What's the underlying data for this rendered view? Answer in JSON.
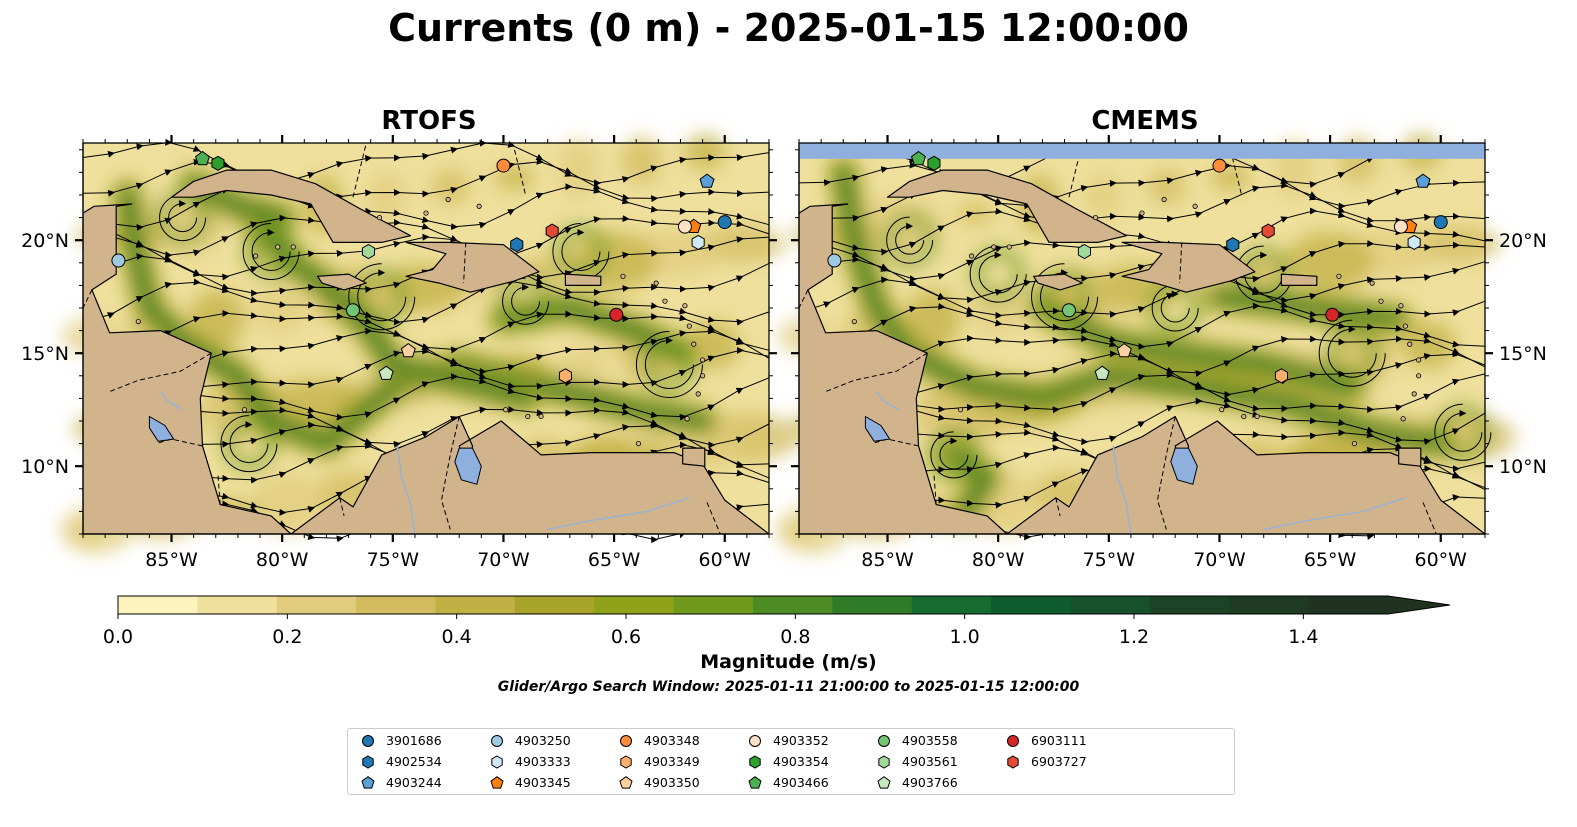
{
  "title": "Currents (0 m) - 2025-01-15 12:00:00",
  "panels": [
    {
      "id": "rtofs",
      "title": "RTOFS"
    },
    {
      "id": "cmems",
      "title": "CMEMS"
    }
  ],
  "map": {
    "lon_range": [
      -89,
      -58
    ],
    "lat_range": [
      7,
      24.3
    ],
    "lon_ticks": [
      -85,
      -80,
      -75,
      -70,
      -65,
      -60
    ],
    "lat_ticks": [
      10,
      15,
      20
    ],
    "lon_tick_labels": [
      "85°W",
      "80°W",
      "75°W",
      "70°W",
      "65°W",
      "60°W"
    ],
    "lat_tick_labels": [
      "10°N",
      "15°N",
      "20°N"
    ],
    "colors": {
      "land": "#d2b48c",
      "lake": "#8fb0de",
      "river": "#9bb2cf",
      "nodata": "#8fb0de",
      "coast": "#000000"
    }
  },
  "colorbar": {
    "label": "Magnitude (m/s)",
    "range": [
      0,
      1.5
    ],
    "tick_values": [
      0,
      0.2,
      0.4,
      0.6,
      0.8,
      1.0,
      1.2,
      1.4
    ],
    "tick_labels": [
      "0.0",
      "0.2",
      "0.4",
      "0.6",
      "0.8",
      "1.0",
      "1.2",
      "1.4"
    ],
    "extend": "max",
    "colors": [
      "#fdf4bd",
      "#efe09d",
      "#e0cc7c",
      "#d2bc5f",
      "#c1b043",
      "#a8a42a",
      "#8ea21a",
      "#6f9a1b",
      "#4d8c22",
      "#2f7b27",
      "#176b30",
      "#0f5d2f",
      "#16512b",
      "#1c4326",
      "#1f3a23",
      "#1f3320"
    ]
  },
  "search_window": "Glider/Argo Search Window: 2025-01-11 21:00:00 to 2025-01-15 12:00:00",
  "floats": [
    {
      "id": "3901686",
      "marker": "circle",
      "color": "#1f77b4",
      "lon": -60.0,
      "lat": 20.8
    },
    {
      "id": "4902534",
      "marker": "hexagon",
      "color": "#1f77b4",
      "lon": -69.4,
      "lat": 19.8
    },
    {
      "id": "4903244",
      "marker": "pentagon",
      "color": "#5aa0d8",
      "lon": -60.8,
      "lat": 22.6
    },
    {
      "id": "4903250",
      "marker": "circle",
      "color": "#9ecae1",
      "lon": -87.4,
      "lat": 19.1
    },
    {
      "id": "4903333",
      "marker": "hexagon",
      "color": "#cfe8f5",
      "lon": -61.2,
      "lat": 19.9
    },
    {
      "id": "4903345",
      "marker": "pentagon",
      "color": "#fd7f0e",
      "lon": -61.4,
      "lat": 20.6
    },
    {
      "id": "4903348",
      "marker": "circle",
      "color": "#fd8d3c",
      "lon": -70.0,
      "lat": 23.3
    },
    {
      "id": "4903349",
      "marker": "hexagon",
      "color": "#fdae6b",
      "lon": -67.2,
      "lat": 14.0
    },
    {
      "id": "4903350",
      "marker": "pentagon",
      "color": "#fdd0a2",
      "lon": -74.3,
      "lat": 15.1
    },
    {
      "id": "4903352",
      "marker": "circle",
      "color": "#fde0c5",
      "lon": -61.8,
      "lat": 20.6
    },
    {
      "id": "4903354",
      "marker": "hexagon",
      "color": "#2ca02c",
      "lon": -82.9,
      "lat": 23.4
    },
    {
      "id": "4903466",
      "marker": "pentagon",
      "color": "#4caf50",
      "lon": -83.6,
      "lat": 23.6
    },
    {
      "id": "4903558",
      "marker": "circle",
      "color": "#74c476",
      "lon": -76.8,
      "lat": 16.9
    },
    {
      "id": "4903561",
      "marker": "hexagon",
      "color": "#a1d99b",
      "lon": -76.1,
      "lat": 19.5
    },
    {
      "id": "4903766",
      "marker": "pentagon",
      "color": "#c7e9c0",
      "lon": -75.3,
      "lat": 14.1
    },
    {
      "id": "6903111",
      "marker": "circle",
      "color": "#d62728",
      "lon": -64.9,
      "lat": 16.7
    },
    {
      "id": "6903727",
      "marker": "hexagon",
      "color": "#e34a33",
      "lon": -67.8,
      "lat": 20.4
    }
  ]
}
